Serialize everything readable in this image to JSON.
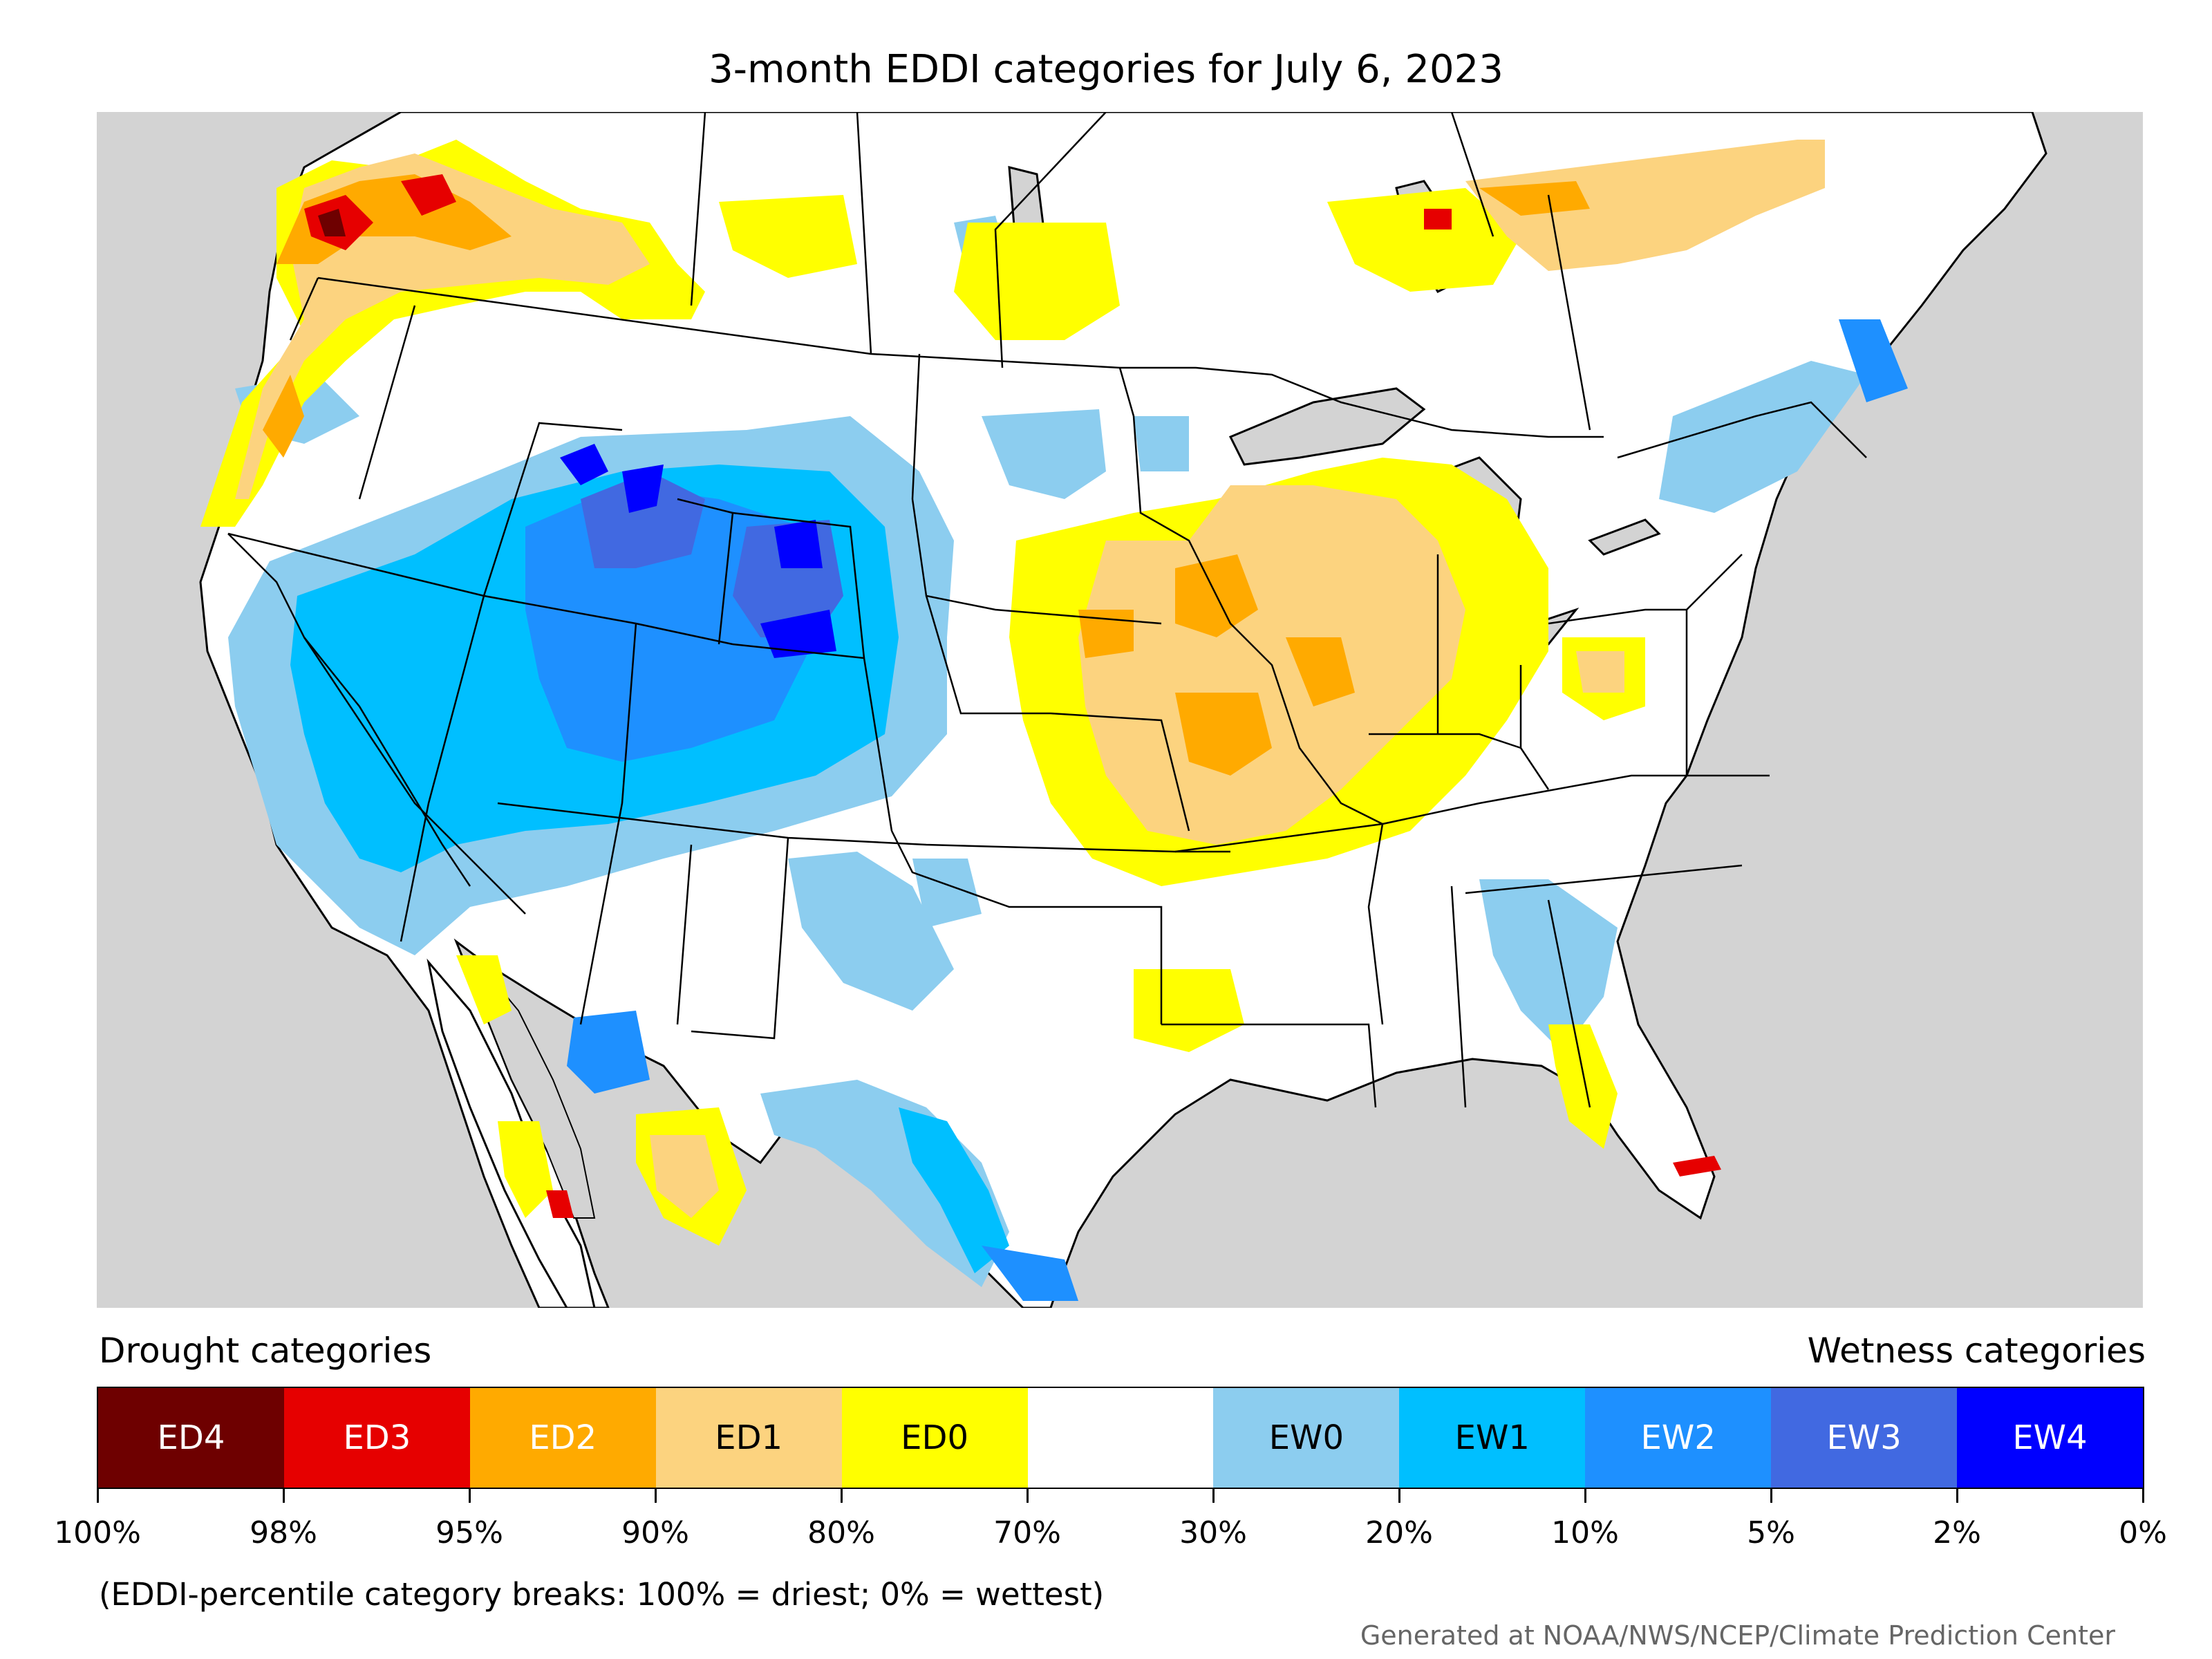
{
  "title": "3-month EDDI categories for July 6, 2023",
  "legend": {
    "drought_heading": "Drought categories",
    "wetness_heading": "Wetness categories",
    "categories": [
      {
        "label": "ED4",
        "color": "#6e0000",
        "text_color": "#ffffff"
      },
      {
        "label": "ED3",
        "color": "#e60000",
        "text_color": "#ffffff"
      },
      {
        "label": "ED2",
        "color": "#ffaa00",
        "text_color": "#ffffff"
      },
      {
        "label": "ED1",
        "color": "#fcd37f",
        "text_color": "#000000"
      },
      {
        "label": "ED0",
        "color": "#ffff00",
        "text_color": "#000000"
      },
      {
        "label": "",
        "color": "#ffffff",
        "text_color": "#000000"
      },
      {
        "label": "EW0",
        "color": "#8ccdef",
        "text_color": "#000000"
      },
      {
        "label": "EW1",
        "color": "#00bfff",
        "text_color": "#000000"
      },
      {
        "label": "EW2",
        "color": "#1e90ff",
        "text_color": "#ffffff"
      },
      {
        "label": "EW3",
        "color": "#4169e1",
        "text_color": "#ffffff"
      },
      {
        "label": "EW4",
        "color": "#0000ff",
        "text_color": "#ffffff"
      }
    ],
    "tick_labels": [
      "100%",
      "98%",
      "95%",
      "90%",
      "80%",
      "70%",
      "30%",
      "20%",
      "10%",
      "5%",
      "2%",
      "0%"
    ]
  },
  "footnote": "(EDDI-percentile category breaks: 100% = driest; 0% = wettest)",
  "credit": "Generated at NOAA/NWS/NCEP/Climate Prediction Center",
  "colors": {
    "land_no_data": "#d3d3d3",
    "ocean": "#d3d3d3",
    "border": "#000000"
  }
}
